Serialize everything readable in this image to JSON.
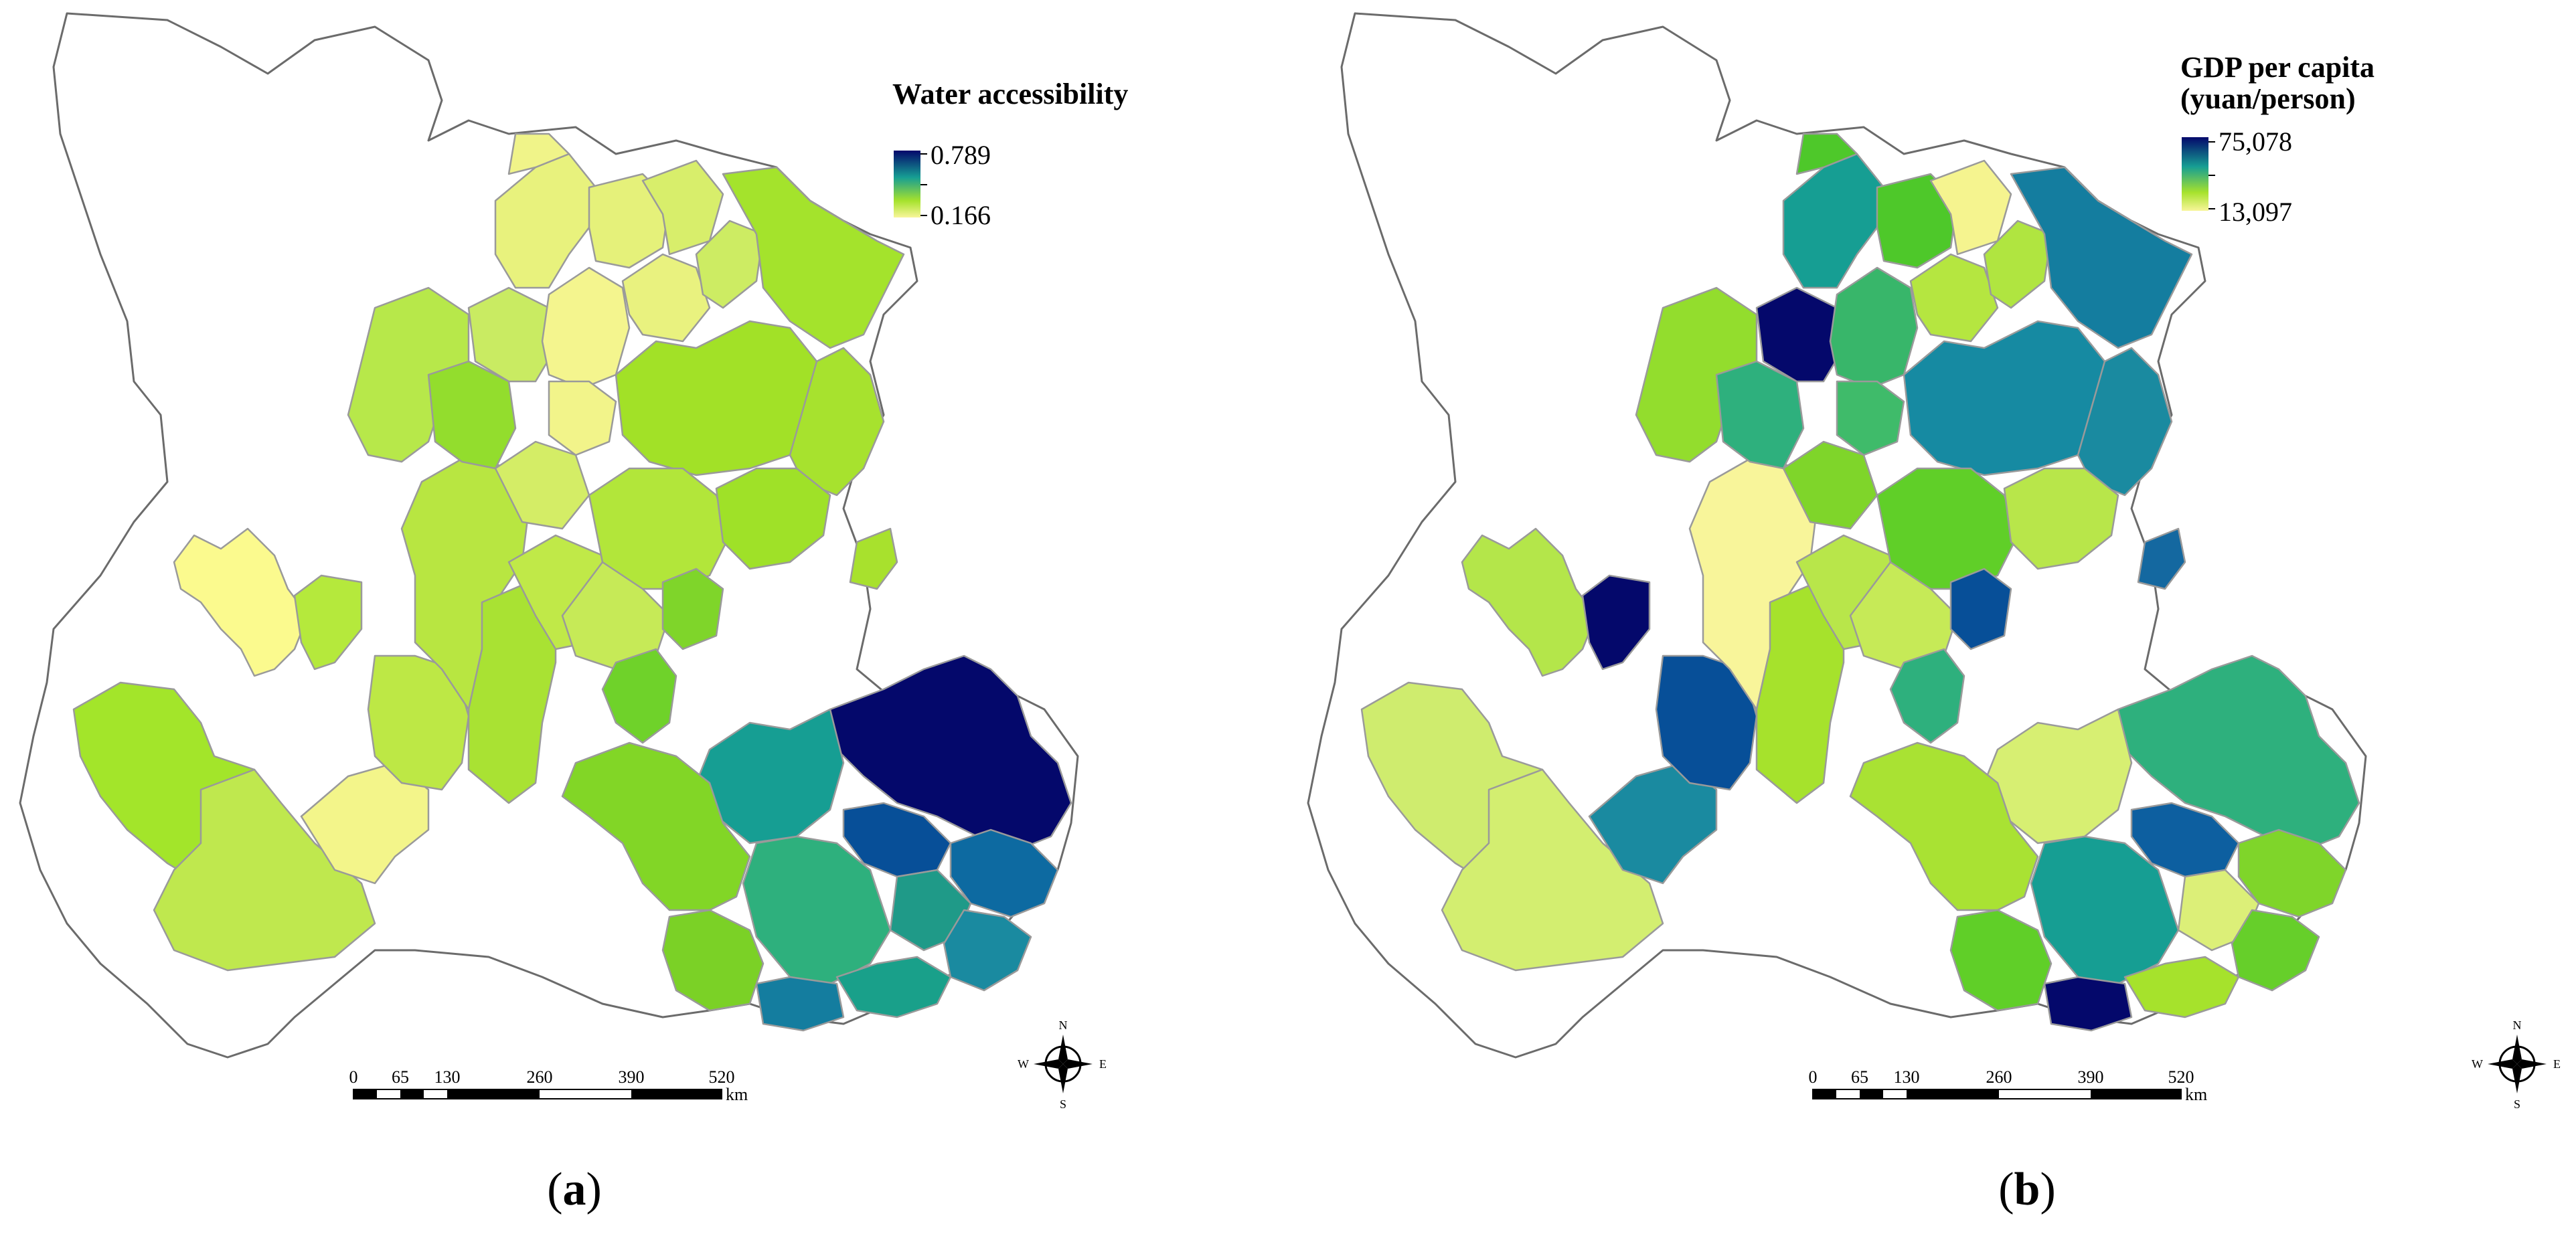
{
  "panels": [
    {
      "id": "a",
      "caption_open": "(",
      "caption_letter": "a",
      "caption_close": ")",
      "legend": {
        "title_lines": [
          "Water accessibility"
        ],
        "max_label": "0.789",
        "min_label": "0.166",
        "colors": [
          "#04086b",
          "#169e93",
          "#a6e22c",
          "#f8f59a"
        ]
      },
      "scale_bar": {
        "ticks": [
          "0",
          "65",
          "130",
          "260",
          "390",
          "520"
        ],
        "unit": "km"
      },
      "compass": {
        "n": "N",
        "s": "S",
        "e": "E",
        "w": "W"
      }
    },
    {
      "id": "b",
      "caption_open": "(",
      "caption_letter": "b",
      "caption_close": ")",
      "legend": {
        "title_lines": [
          "GDP per capita",
          "(yuan/person)"
        ],
        "max_label": "75,078",
        "min_label": "13,097",
        "colors": [
          "#04086b",
          "#169e93",
          "#a6e22c",
          "#f8f59a"
        ]
      },
      "scale_bar": {
        "ticks": [
          "0",
          "65",
          "130",
          "260",
          "390",
          "520"
        ],
        "unit": "km"
      },
      "compass": {
        "n": "N",
        "s": "S",
        "e": "E",
        "w": "W"
      }
    }
  ]
}
